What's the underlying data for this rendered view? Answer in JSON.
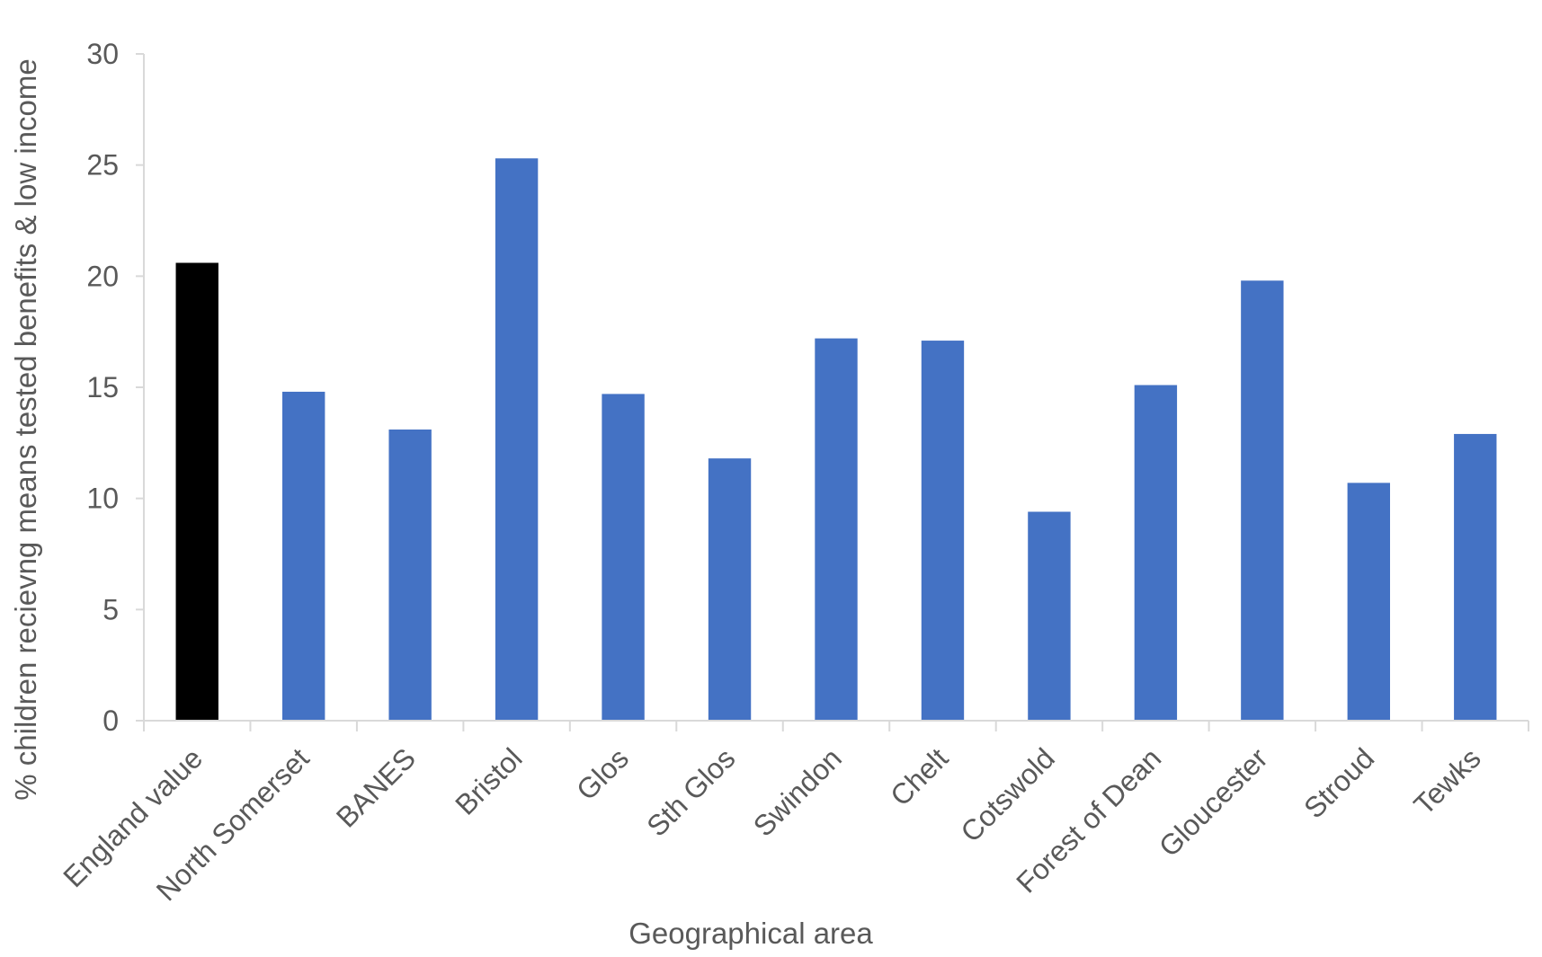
{
  "chart_data": {
    "type": "bar",
    "title": "",
    "xlabel": "Geographical area",
    "ylabel": "% children recievng means tested benefits & low income",
    "ylim": [
      0,
      30
    ],
    "yticks": [
      0,
      5,
      10,
      15,
      20,
      25,
      30
    ],
    "grid": false,
    "legend": "none",
    "categories": [
      "England value",
      "North Somerset",
      "BANES",
      "Bristol",
      "Glos",
      "Sth Glos",
      "Swindon",
      "Chelt",
      "Cotswold",
      "Forest of Dean",
      "Gloucester",
      "Stroud",
      "Tewks"
    ],
    "values": [
      20.6,
      14.8,
      13.1,
      25.3,
      14.7,
      11.8,
      17.2,
      17.1,
      9.4,
      15.1,
      19.8,
      10.7,
      12.9
    ],
    "bar_colors": [
      "#000000",
      "#4472c4",
      "#4472c4",
      "#4472c4",
      "#4472c4",
      "#4472c4",
      "#4472c4",
      "#4472c4",
      "#4472c4",
      "#4472c4",
      "#4472c4",
      "#4472c4",
      "#4472c4"
    ],
    "axis_color": "#d9d9d9",
    "text_color": "#595959"
  }
}
